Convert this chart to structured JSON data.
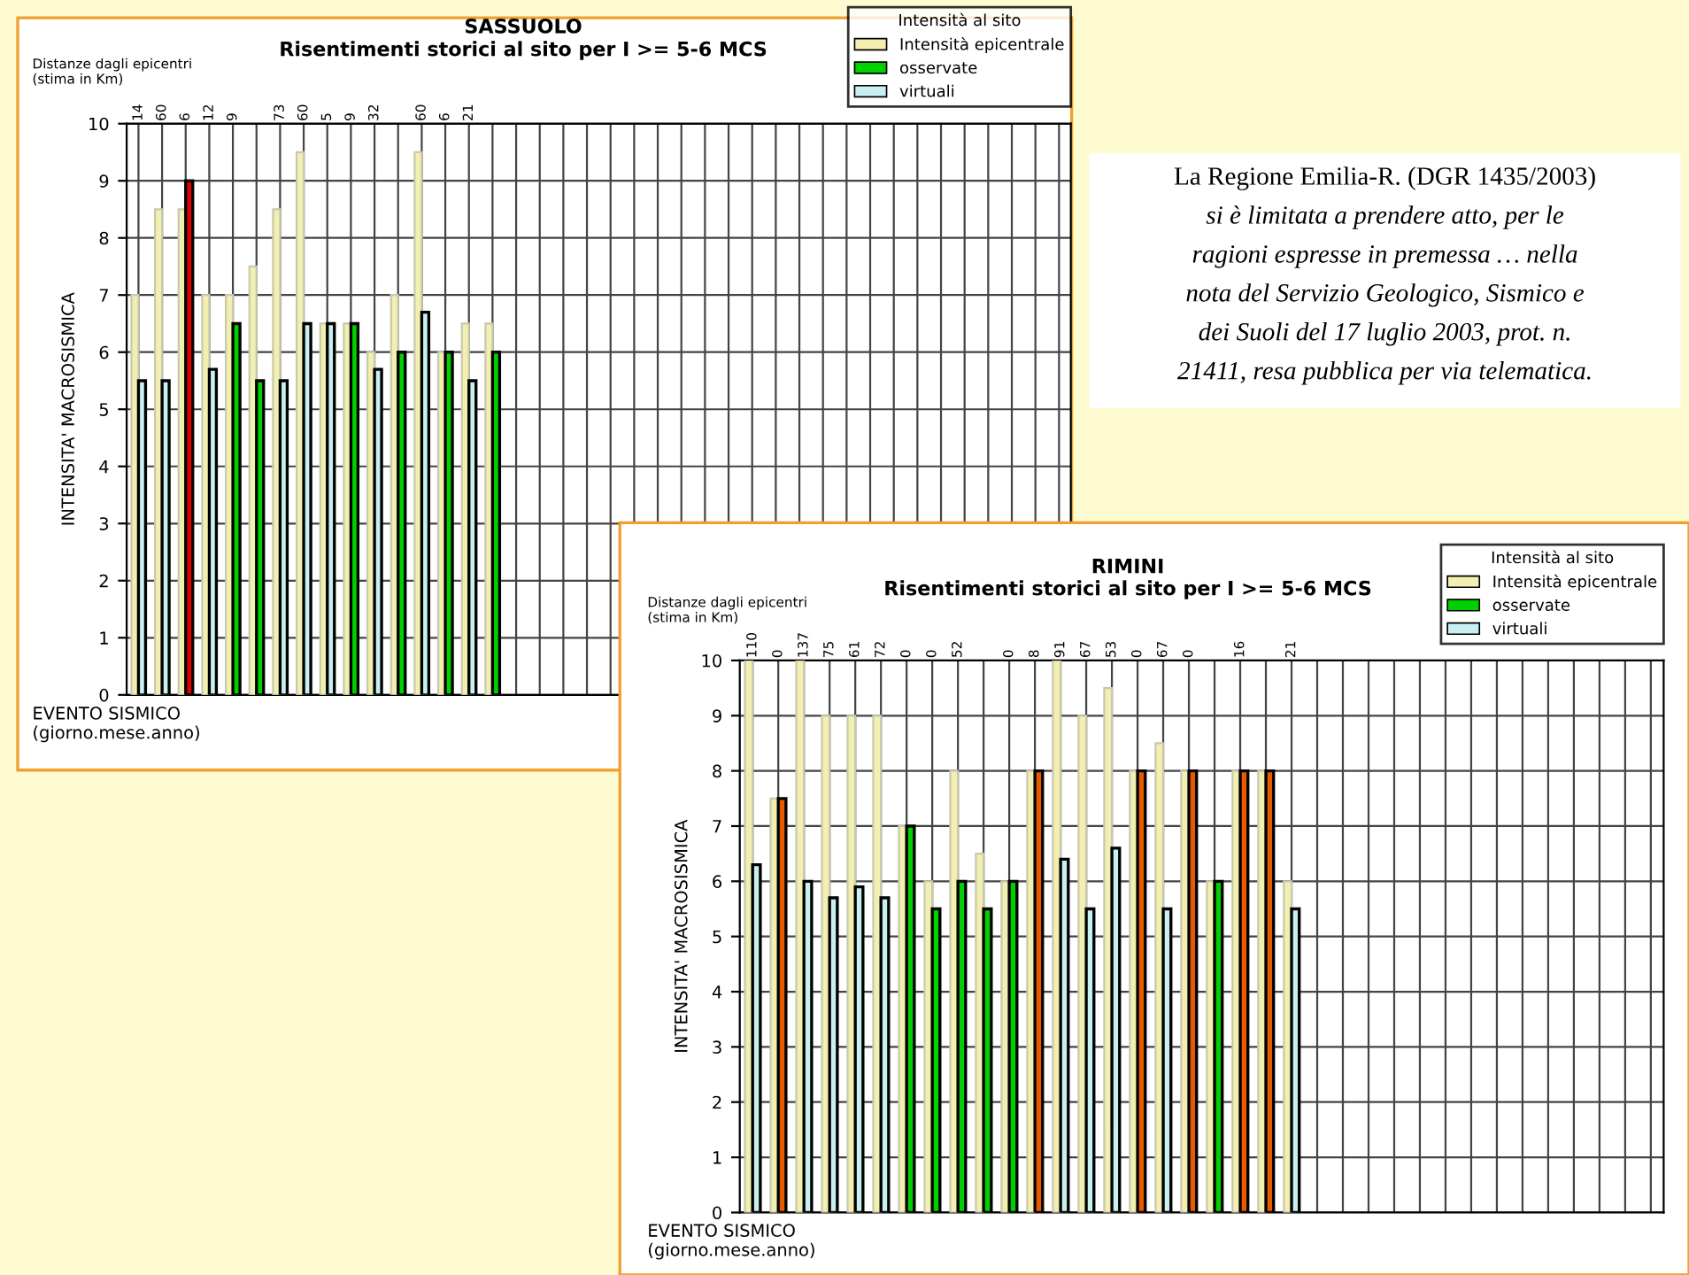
{
  "chart_data": [
    {
      "type": "bar",
      "title": "SASSUOLO",
      "subtitle": "Risentimenti storici al sito per I >= 5-6 MCS",
      "xlabel": "EVENTO SISMICO\n(giorno.mese.anno)",
      "ylabel": "INTENSITA' MACROSISMICA",
      "legend_title": "Intensità al sito",
      "annotations": [
        "Distanze dagli epicentri\n(stima in Km)"
      ],
      "categories": [
        "14",
        "60",
        "6",
        "12",
        "9",
        null,
        "73",
        "60",
        "5",
        "9",
        "32",
        null,
        "60",
        "6",
        "21",
        null,
        null,
        null,
        null,
        null,
        null,
        null,
        null,
        null,
        null,
        null,
        null,
        null,
        null,
        null,
        null,
        null,
        null,
        null,
        null,
        null,
        null,
        null,
        null,
        null
      ],
      "series": [
        {
          "name": "Intensità epicentrale",
          "color": "#f3efb0",
          "values": [
            7,
            8.5,
            8.5,
            7,
            7,
            7.5,
            8.5,
            9.5,
            6.5,
            6.5,
            6,
            7,
            9.5,
            6,
            6.5,
            6.5,
            null,
            null,
            null,
            null,
            null,
            null,
            null,
            null,
            null,
            null,
            null,
            null,
            null,
            null,
            null,
            null,
            null,
            null,
            null,
            null,
            null,
            null,
            null,
            null
          ]
        },
        {
          "name": "osservate",
          "color": "#00d000",
          "colors": [
            "#00d000",
            "#00d000",
            "#e00000",
            "#00d000",
            "#00d000",
            "#00d000",
            "#00d000",
            "#00d000",
            "#00d000",
            "#00d000",
            "#00d000",
            "#00d000",
            "#00d000",
            "#00d000",
            "#00d000",
            "#00d000",
            "#00d000",
            "#00d000",
            "#00d000",
            "#00d000",
            "#00d000",
            "#00d000",
            "#00d000",
            "#00d000",
            "#00d000",
            "#00d000",
            "#00d000",
            "#00d000",
            "#00d000",
            "#00d000",
            "#00d000",
            "#00d000",
            "#00d000",
            "#00d000",
            "#00d000",
            "#00d000",
            "#00d000",
            "#00d000",
            "#00d000",
            "#00d000"
          ],
          "values": [
            null,
            null,
            9,
            null,
            6.5,
            5.5,
            null,
            null,
            null,
            6.5,
            null,
            6,
            null,
            6,
            null,
            6,
            null,
            null,
            null,
            null,
            null,
            null,
            null,
            null,
            null,
            null,
            null,
            null,
            null,
            null,
            null,
            null,
            null,
            null,
            null,
            null,
            null,
            null,
            null,
            null
          ]
        },
        {
          "name": "virtuali",
          "color": "#c8f0f0",
          "values": [
            5.5,
            5.5,
            null,
            5.7,
            null,
            null,
            5.5,
            6.5,
            6.5,
            null,
            5.7,
            null,
            6.7,
            null,
            5.5,
            null,
            null,
            null,
            null,
            null,
            null,
            null,
            null,
            null,
            null,
            null,
            null,
            null,
            null,
            null,
            null,
            null,
            null,
            null,
            null,
            null,
            null,
            null,
            null,
            null
          ]
        }
      ],
      "ylim": [
        0,
        10
      ],
      "yticks": [
        0,
        1,
        2,
        3,
        4,
        5,
        6,
        7,
        8,
        9,
        10
      ],
      "grid": true,
      "legend": "top right"
    },
    {
      "type": "bar",
      "title": "RIMINI",
      "subtitle": "Risentimenti storici al sito per I >= 5-6 MCS",
      "xlabel": "EVENTO SISMICO\n(giorno.mese.anno)",
      "ylabel": "INTENSITA' MACROSISMICA",
      "legend_title": "Intensità al sito",
      "annotations": [
        "Distanze dagli epicentri\n(stima in Km)"
      ],
      "categories": [
        "110",
        "0",
        "137",
        "75",
        "61",
        "72",
        "0",
        "0",
        "52",
        null,
        "0",
        "8",
        "91",
        "67",
        "53",
        "0",
        "67",
        "0",
        null,
        "16",
        null,
        "21",
        null,
        null,
        null,
        null,
        null,
        null,
        null,
        null,
        null,
        null,
        null,
        null,
        null,
        null
      ],
      "series": [
        {
          "name": "Intensità epicentrale",
          "color": "#f3efb0",
          "values": [
            10,
            7.5,
            10,
            9,
            9,
            9,
            7,
            6,
            8,
            6.5,
            6,
            8,
            10,
            9,
            9.5,
            8,
            8.5,
            8,
            6,
            8,
            8,
            6,
            null,
            null,
            null,
            null,
            null,
            null,
            null,
            null,
            null,
            null,
            null,
            null,
            null,
            null
          ]
        },
        {
          "name": "osservate",
          "color": "#00d000",
          "colors": [
            "#00d000",
            "#e85a00",
            "#00d000",
            "#00d000",
            "#00d000",
            "#00d000",
            "#00d000",
            "#00d000",
            "#00d000",
            "#00d000",
            "#00d000",
            "#e85a00",
            "#00d000",
            "#00d000",
            "#00d000",
            "#e85a00",
            "#00d000",
            "#e85a00",
            "#00d000",
            "#e85a00",
            "#e85a00",
            "#00d000",
            "#00d000",
            "#00d000",
            "#00d000",
            "#00d000",
            "#00d000",
            "#00d000",
            "#00d000",
            "#00d000",
            "#00d000",
            "#00d000",
            "#00d000",
            "#00d000",
            "#00d000",
            "#00d000"
          ],
          "values": [
            null,
            7.5,
            null,
            null,
            null,
            null,
            7,
            5.5,
            6,
            5.5,
            6,
            8,
            null,
            null,
            null,
            8,
            null,
            8,
            6,
            8,
            8,
            null,
            null,
            null,
            null,
            null,
            null,
            null,
            null,
            null,
            null,
            null,
            null,
            null,
            null,
            null
          ]
        },
        {
          "name": "virtuali",
          "color": "#c8f0f0",
          "values": [
            6.3,
            null,
            6,
            5.7,
            5.9,
            5.7,
            null,
            null,
            null,
            null,
            null,
            null,
            6.4,
            5.5,
            6.6,
            null,
            5.5,
            null,
            null,
            null,
            null,
            5.5,
            null,
            null,
            null,
            null,
            null,
            null,
            null,
            null,
            null,
            null,
            null,
            null,
            null,
            null
          ]
        }
      ],
      "ylim": [
        0,
        10
      ],
      "yticks": [
        0,
        1,
        2,
        3,
        4,
        5,
        6,
        7,
        8,
        9,
        10
      ],
      "grid": true,
      "legend": "top right"
    },
    {
      "type": "other",
      "annotations": [
        "La Regione Emilia-R. (DGR 1435/2003)",
        "si è limitata a prendere atto, per le",
        "ragioni espresse in premessa … nella",
        "nota del Servizio Geologico, Sismico e",
        "dei Suoli del 17 luglio 2003, prot. n.",
        "21411, resa pubblica per via telematica."
      ]
    }
  ]
}
